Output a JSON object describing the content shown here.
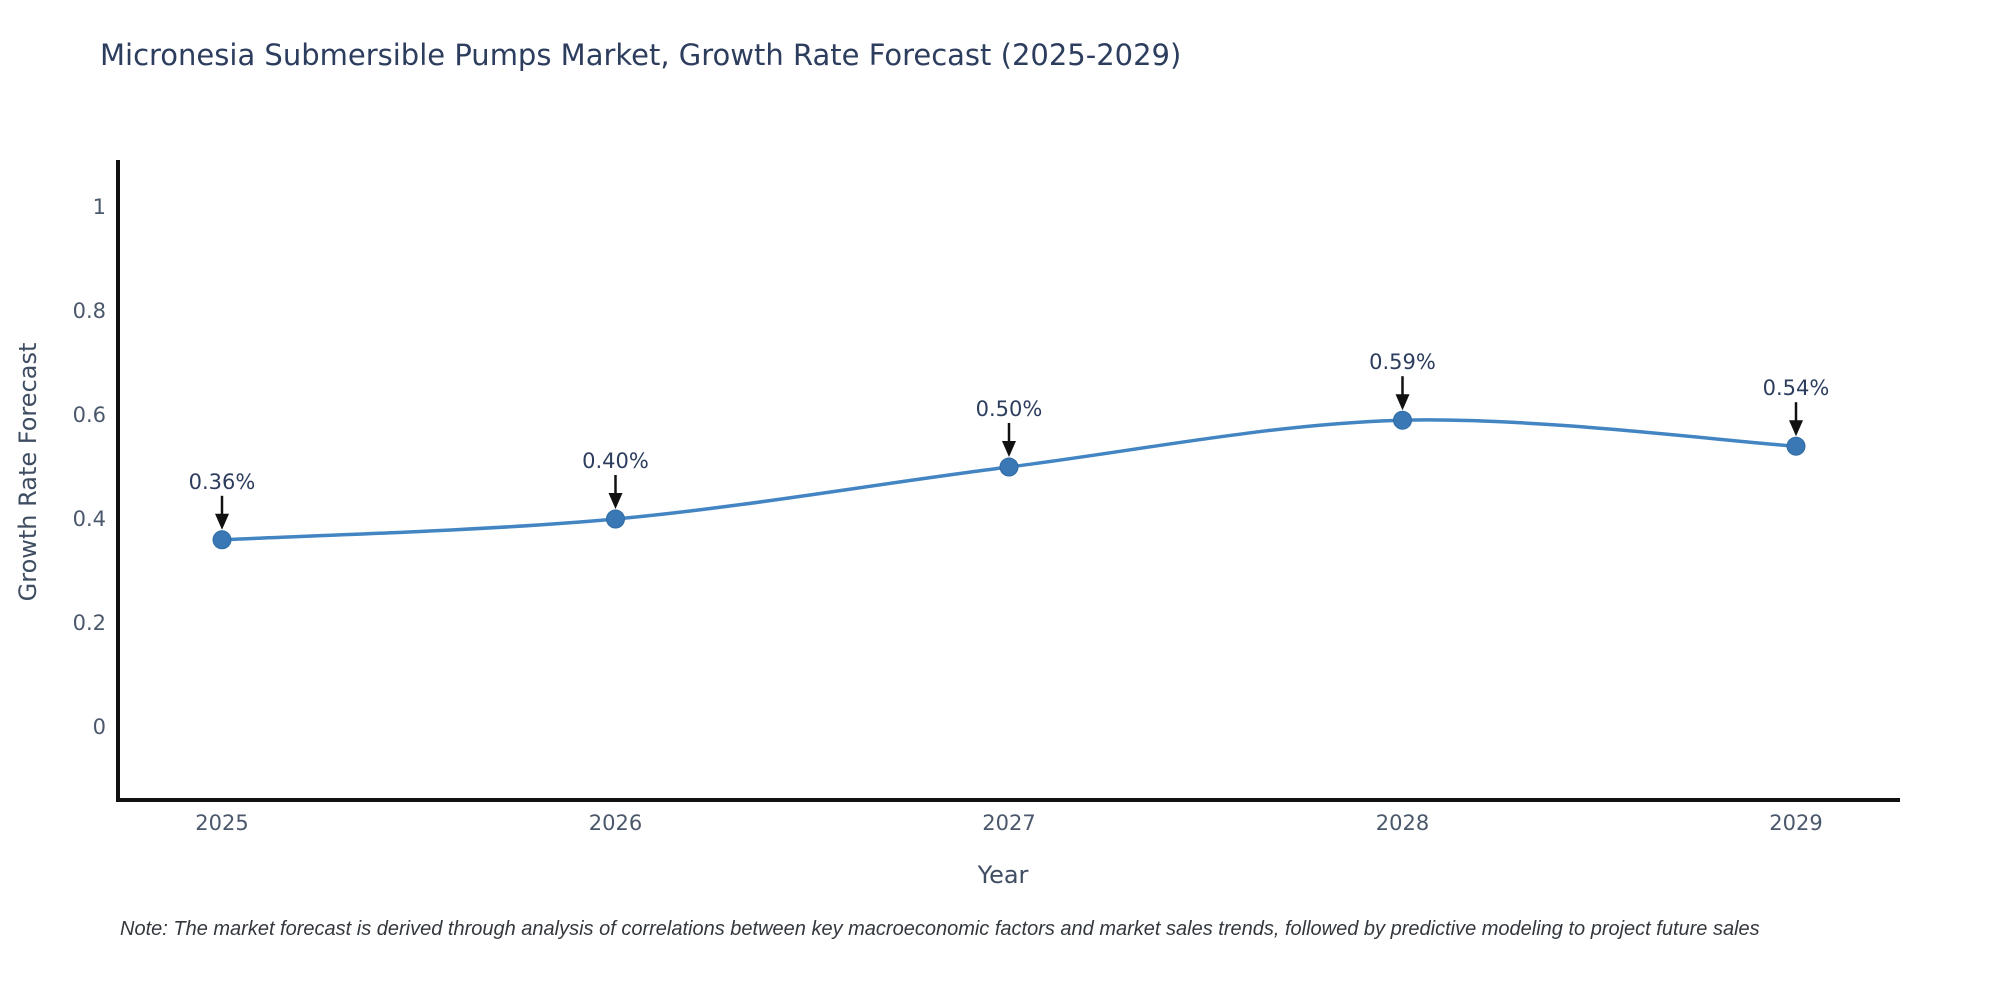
{
  "page": {
    "background": "#ffffff"
  },
  "chart_data": {
    "type": "line",
    "title": "Micronesia Submersible Pumps Market, Growth Rate Forecast (2025-2029)",
    "xlabel": "Year",
    "ylabel": "Growth Rate Forecast",
    "categories": [
      "2025",
      "2026",
      "2027",
      "2028",
      "2029"
    ],
    "series": [
      {
        "name": "Growth Rate Forecast",
        "values": [
          0.36,
          0.4,
          0.5,
          0.59,
          0.54
        ]
      }
    ],
    "data_labels": [
      "0.36%",
      "0.40%",
      "0.50%",
      "0.59%",
      "0.54%"
    ],
    "ytick_labels": [
      "0",
      "0.2",
      "0.4",
      "0.6",
      "0.8",
      "1"
    ],
    "ytick_values": [
      0,
      0.2,
      0.4,
      0.6,
      0.8,
      1
    ],
    "ylim": [
      -0.145,
      1.09
    ],
    "grid": false,
    "legend": false,
    "curve": "spline",
    "annotation_style": "arrow-down-to-point",
    "line_color": "#4285c2",
    "marker_color": "#3a78b5",
    "marker_edge_color": "#2f6ba3",
    "arrow_color": "#111111",
    "axis_color": "#111111",
    "tick_color": "#4b586c",
    "annotation_color": "#2d3d5e"
  },
  "note": {
    "text": "Note: The market forecast is derived through analysis of correlations between key macroeconomic factors and market sales trends, followed by predictive modeling to project future sales"
  }
}
